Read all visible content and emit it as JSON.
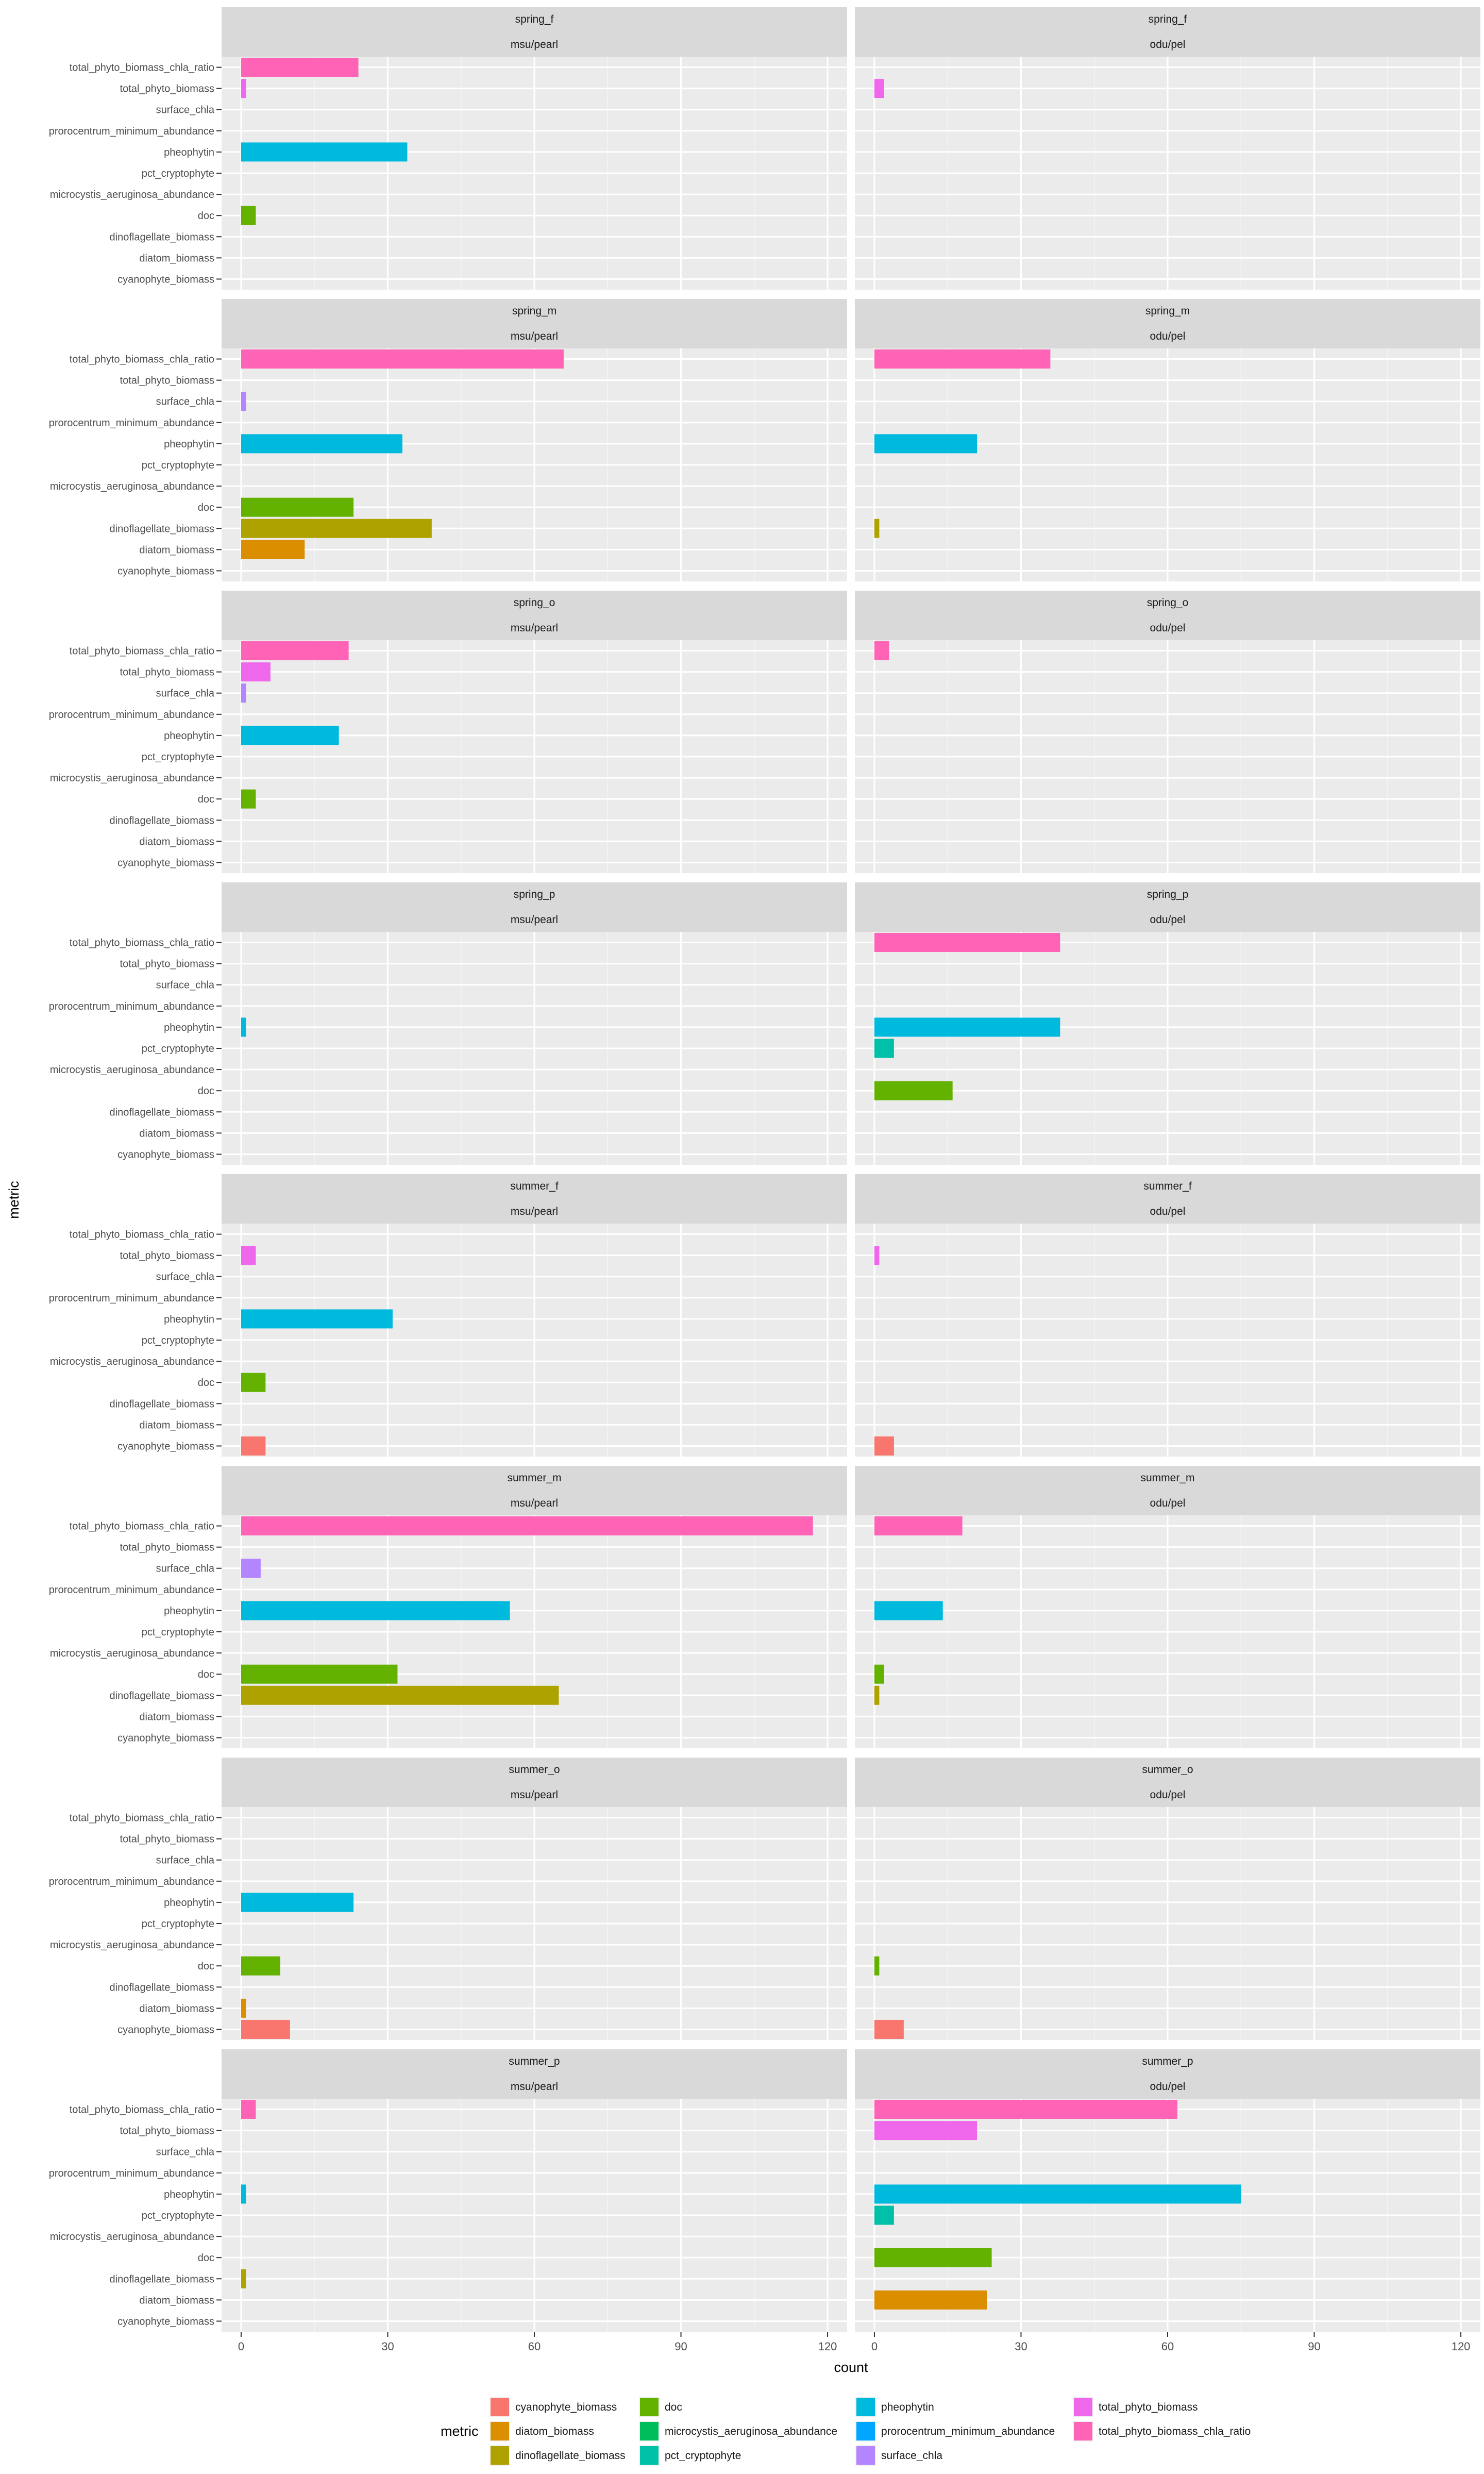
{
  "chart_data": {
    "type": "bar",
    "orientation": "horizontal",
    "facet_grid": true,
    "xlabel": "count",
    "ylabel": "metric",
    "xlim": [
      -4,
      124
    ],
    "x_ticks": [
      0,
      30,
      60,
      90,
      120
    ],
    "grid": true,
    "legend": {
      "title": "metric",
      "position": "bottom"
    },
    "categories": [
      "total_phyto_biomass_chla_ratio",
      "total_phyto_biomass",
      "surface_chla",
      "prorocentrum_minimum_abundance",
      "pheophytin",
      "pct_cryptophyte",
      "microcystis_aeruginosa_abundance",
      "doc",
      "dinoflagellate_biomass",
      "diatom_biomass",
      "cyanophyte_biomass"
    ],
    "legend_order": [
      "cyanophyte_biomass",
      "diatom_biomass",
      "dinoflagellate_biomass",
      "doc",
      "microcystis_aeruginosa_abundance",
      "pct_cryptophyte",
      "pheophytin",
      "prorocentrum_minimum_abundance",
      "surface_chla",
      "total_phyto_biomass",
      "total_phyto_biomass_chla_ratio"
    ],
    "colors": {
      "cyanophyte_biomass": "#F8766D",
      "diatom_biomass": "#DB8E00",
      "dinoflagellate_biomass": "#AEA200",
      "doc": "#64B200",
      "microcystis_aeruginosa_abundance": "#00BD5C",
      "pct_cryptophyte": "#00C1A7",
      "pheophytin": "#00BADE",
      "prorocentrum_minimum_abundance": "#00A6FF",
      "surface_chla": "#B385FF",
      "total_phyto_biomass": "#EF67EB",
      "total_phyto_biomass_chla_ratio": "#FF63B6"
    },
    "columns": [
      "msu/pearl",
      "odu/pel"
    ],
    "rows": [
      {
        "name": "spring_f",
        "panels": [
          {
            "total_phyto_biomass_chla_ratio": 24,
            "total_phyto_biomass": 1,
            "pheophytin": 34,
            "doc": 3
          },
          {
            "total_phyto_biomass": 2
          }
        ]
      },
      {
        "name": "spring_m",
        "panels": [
          {
            "total_phyto_biomass_chla_ratio": 66,
            "surface_chla": 1,
            "pheophytin": 33,
            "doc": 23,
            "dinoflagellate_biomass": 39,
            "diatom_biomass": 13
          },
          {
            "total_phyto_biomass_chla_ratio": 36,
            "pheophytin": 21,
            "dinoflagellate_biomass": 1
          }
        ]
      },
      {
        "name": "spring_o",
        "panels": [
          {
            "total_phyto_biomass_chla_ratio": 22,
            "total_phyto_biomass": 6,
            "surface_chla": 1,
            "pheophytin": 20,
            "doc": 3
          },
          {
            "total_phyto_biomass_chla_ratio": 3
          }
        ]
      },
      {
        "name": "spring_p",
        "panels": [
          {
            "pheophytin": 1
          },
          {
            "total_phyto_biomass_chla_ratio": 38,
            "pheophytin": 38,
            "pct_cryptophyte": 4,
            "doc": 16
          }
        ]
      },
      {
        "name": "summer_f",
        "panels": [
          {
            "total_phyto_biomass": 3,
            "pheophytin": 31,
            "doc": 5,
            "cyanophyte_biomass": 5
          },
          {
            "total_phyto_biomass": 1,
            "cyanophyte_biomass": 4
          }
        ]
      },
      {
        "name": "summer_m",
        "panels": [
          {
            "total_phyto_biomass_chla_ratio": 117,
            "surface_chla": 4,
            "pheophytin": 55,
            "doc": 32,
            "dinoflagellate_biomass": 65
          },
          {
            "total_phyto_biomass_chla_ratio": 18,
            "pheophytin": 14,
            "doc": 2,
            "dinoflagellate_biomass": 1
          }
        ]
      },
      {
        "name": "summer_o",
        "panels": [
          {
            "pheophytin": 23,
            "doc": 8,
            "diatom_biomass": 1,
            "cyanophyte_biomass": 10
          },
          {
            "doc": 1,
            "cyanophyte_biomass": 6
          }
        ]
      },
      {
        "name": "summer_p",
        "panels": [
          {
            "total_phyto_biomass_chla_ratio": 3,
            "pheophytin": 1,
            "dinoflagellate_biomass": 1
          },
          {
            "total_phyto_biomass_chla_ratio": 62,
            "total_phyto_biomass": 21,
            "pheophytin": 75,
            "pct_cryptophyte": 4,
            "doc": 24,
            "diatom_biomass": 23
          }
        ]
      }
    ]
  }
}
